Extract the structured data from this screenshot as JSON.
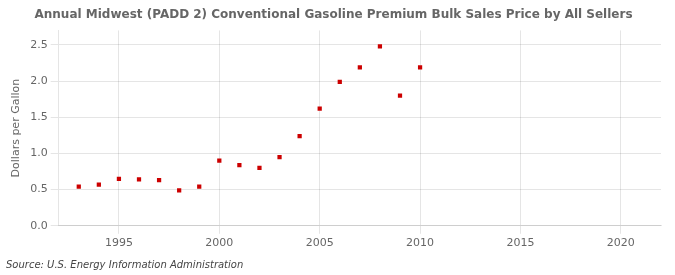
{
  "chart_data": {
    "type": "scatter",
    "title": "Annual Midwest (PADD 2) Conventional Gasoline Premium Bulk Sales Price by All Sellers",
    "ylabel": "Dollars per Gallon",
    "source": "Source: U.S. Energy Information Administration",
    "x": [
      1993,
      1994,
      1995,
      1996,
      1997,
      1998,
      1999,
      2000,
      2001,
      2002,
      2003,
      2004,
      2005,
      2006,
      2007,
      2008,
      2009,
      2010
    ],
    "values": [
      0.54,
      0.57,
      0.65,
      0.64,
      0.63,
      0.49,
      0.54,
      0.9,
      0.84,
      0.8,
      0.95,
      1.24,
      1.62,
      1.99,
      2.19,
      2.48,
      1.8,
      2.19
    ],
    "color": "#cc0000",
    "marker": "square",
    "xlim": [
      1992,
      2022
    ],
    "xticks": [
      1995,
      2000,
      2005,
      2010,
      2015,
      2020
    ],
    "ylim": [
      0.0,
      2.7
    ],
    "yticks": [
      {
        "value": 0,
        "label": "0.0"
      },
      0.5,
      {
        "value": 1,
        "label": "1.0"
      },
      1.5,
      {
        "value": 2,
        "label": "2.0"
      },
      2.5
    ],
    "grid": true
  }
}
